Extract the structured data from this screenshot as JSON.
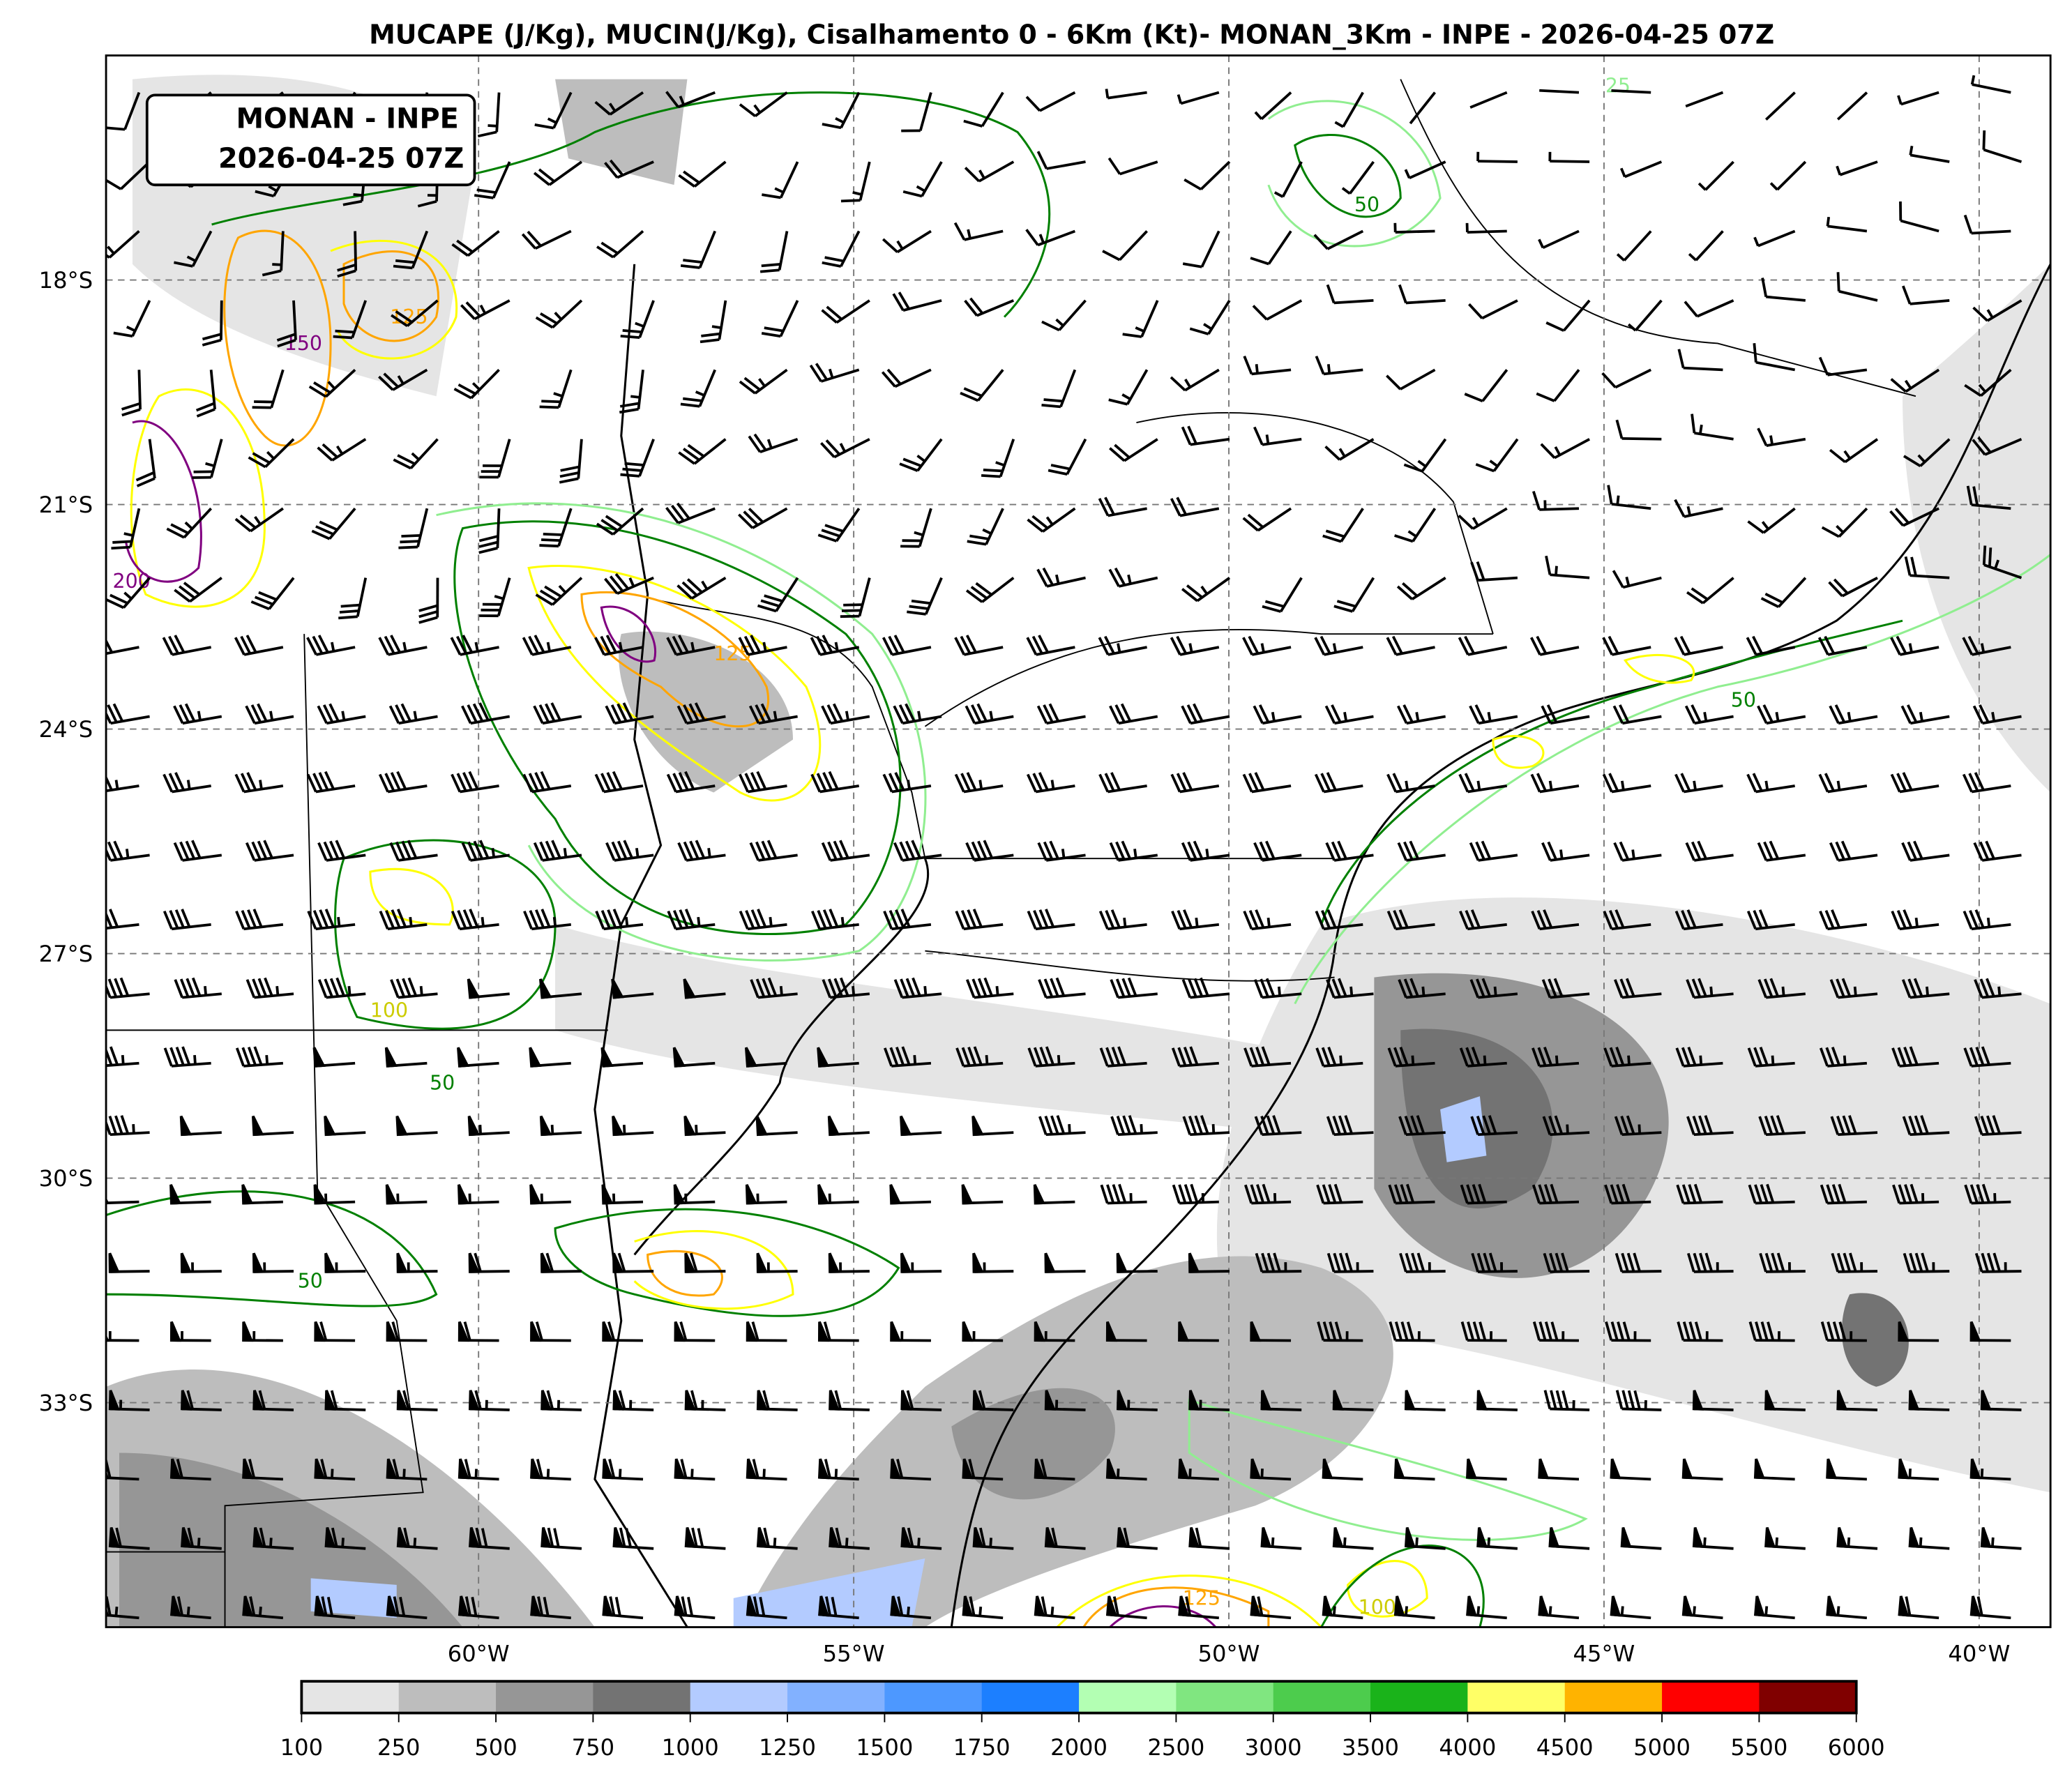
{
  "title": "MUCAPE (J/Kg), MUCIN(J/Kg), Cisalhamento 0 - 6Km (Kt)- MONAN_3Km - INPE - 2026-04-25 07Z",
  "label_box": {
    "line1": "MONAN - INPE",
    "line2": "2026-04-25 07Z"
  },
  "map": {
    "lat_ticks": [
      "18°S",
      "21°S",
      "24°S",
      "27°S",
      "30°S",
      "33°S"
    ],
    "lat_values": [
      -18,
      -21,
      -24,
      -27,
      -30,
      -33
    ],
    "lon_ticks": [
      "60°W",
      "55°W",
      "50°W",
      "45°W",
      "40°W"
    ],
    "lon_values": [
      -60,
      -55,
      -50,
      -45,
      -40
    ],
    "gridlines": true
  },
  "contours": {
    "mucin_labels": [
      "25",
      "50",
      "100",
      "125",
      "150",
      "200"
    ],
    "colors": {
      "25": "#90ee90",
      "50": "#008000",
      "100": "#ffff00",
      "125": "#ffa500",
      "150": "#800080"
    }
  },
  "colorbar": {
    "ticks": [
      "100",
      "250",
      "500",
      "750",
      "1000",
      "1250",
      "1500",
      "1750",
      "2000",
      "2500",
      "3000",
      "3500",
      "4000",
      "4500",
      "5000",
      "5500",
      "6000"
    ],
    "colors": [
      "#e5e5e5",
      "#bdbdbd",
      "#969696",
      "#737373",
      "#b3cbff",
      "#82b1ff",
      "#4d98ff",
      "#1c7fff",
      "#b3ffb3",
      "#80e680",
      "#4dcc4d",
      "#1ab31a",
      "#ffff66",
      "#ffb300",
      "#ff0000",
      "#800000"
    ]
  }
}
